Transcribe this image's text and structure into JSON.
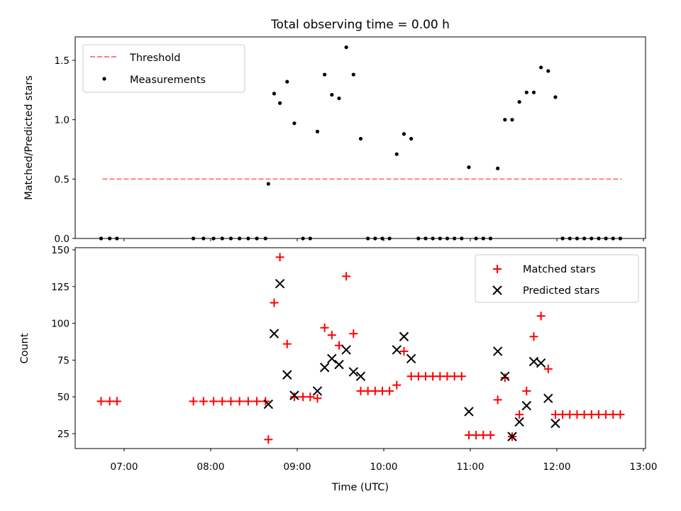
{
  "chart_data": [
    {
      "type": "scatter",
      "title": "Total observing time = 0.00 h",
      "xlabel": "",
      "ylabel": "Matched/Predicted stars",
      "ylim": [
        0,
        1.7
      ],
      "yticks": [
        0.0,
        0.5,
        1.0,
        1.5
      ],
      "ytick_labels": [
        "0.0",
        "0.5",
        "1.0",
        "1.5"
      ],
      "xlim": [
        "06:25",
        "13:00"
      ],
      "threshold": {
        "name": "Threshold",
        "value": 0.5,
        "x_start": "06:45",
        "x_end": "12:45",
        "color": "#ff8080",
        "style": "dashed"
      },
      "legend": {
        "position": "upper left",
        "entries": [
          "Threshold",
          "Measurements"
        ]
      },
      "series": [
        {
          "name": "Measurements",
          "color": "#000000",
          "marker": "dot",
          "points": [
            [
              "06:44",
              0
            ],
            [
              "06:50",
              0
            ],
            [
              "06:55",
              0
            ],
            [
              "07:48",
              0
            ],
            [
              "07:55",
              0
            ],
            [
              "08:02",
              0
            ],
            [
              "08:08",
              0
            ],
            [
              "08:14",
              0
            ],
            [
              "08:20",
              0
            ],
            [
              "08:26",
              0
            ],
            [
              "08:32",
              0
            ],
            [
              "08:38",
              0
            ],
            [
              "08:40",
              0.46
            ],
            [
              "08:44",
              1.22
            ],
            [
              "08:48",
              1.14
            ],
            [
              "08:53",
              1.32
            ],
            [
              "08:58",
              0.97
            ],
            [
              "09:04",
              0
            ],
            [
              "09:09",
              0
            ],
            [
              "09:14",
              0.9
            ],
            [
              "09:19",
              1.38
            ],
            [
              "09:24",
              1.21
            ],
            [
              "09:29",
              1.18
            ],
            [
              "09:34",
              1.61
            ],
            [
              "09:39",
              1.38
            ],
            [
              "09:44",
              0.84
            ],
            [
              "09:49",
              0
            ],
            [
              "09:54",
              0
            ],
            [
              "09:59",
              0
            ],
            [
              "10:04",
              0
            ],
            [
              "10:09",
              0.71
            ],
            [
              "10:14",
              0.88
            ],
            [
              "10:19",
              0.84
            ],
            [
              "10:24",
              0
            ],
            [
              "10:29",
              0
            ],
            [
              "10:34",
              0
            ],
            [
              "10:39",
              0
            ],
            [
              "10:44",
              0
            ],
            [
              "10:49",
              0
            ],
            [
              "10:54",
              0
            ],
            [
              "10:59",
              0.6
            ],
            [
              "11:04",
              0
            ],
            [
              "11:09",
              0
            ],
            [
              "11:14",
              0
            ],
            [
              "11:19",
              0.59
            ],
            [
              "11:24",
              1.0
            ],
            [
              "11:29",
              1.0
            ],
            [
              "11:34",
              1.15
            ],
            [
              "11:39",
              1.23
            ],
            [
              "11:44",
              1.23
            ],
            [
              "11:49",
              1.44
            ],
            [
              "11:54",
              1.41
            ],
            [
              "11:59",
              1.19
            ],
            [
              "12:04",
              0
            ],
            [
              "12:09",
              0
            ],
            [
              "12:14",
              0
            ],
            [
              "12:19",
              0
            ],
            [
              "12:24",
              0
            ],
            [
              "12:29",
              0
            ],
            [
              "12:34",
              0
            ],
            [
              "12:39",
              0
            ],
            [
              "12:44",
              0
            ]
          ]
        }
      ]
    },
    {
      "type": "scatter",
      "title": "",
      "xlabel": "Time (UTC)",
      "ylabel": "Count",
      "ylim": [
        14,
        151
      ],
      "yticks": [
        25,
        50,
        75,
        100,
        125,
        150
      ],
      "ytick_labels": [
        "25",
        "50",
        "75",
        "100",
        "125",
        "150"
      ],
      "xlim": [
        "06:25",
        "13:00"
      ],
      "xticks": [
        "07:00",
        "08:00",
        "09:00",
        "10:00",
        "11:00",
        "12:00",
        "13:00"
      ],
      "xtick_labels": [
        "07:00",
        "08:00",
        "09:00",
        "10:00",
        "11:00",
        "12:00",
        "13:00"
      ],
      "legend": {
        "position": "upper right",
        "entries": [
          "Matched stars",
          "Predicted stars"
        ]
      },
      "series": [
        {
          "name": "Matched stars",
          "color": "#ff0000",
          "marker": "plus",
          "points": [
            [
              "06:44",
              47
            ],
            [
              "06:50",
              47
            ],
            [
              "06:55",
              47
            ],
            [
              "07:48",
              47
            ],
            [
              "07:55",
              47
            ],
            [
              "08:02",
              47
            ],
            [
              "08:08",
              47
            ],
            [
              "08:14",
              47
            ],
            [
              "08:20",
              47
            ],
            [
              "08:26",
              47
            ],
            [
              "08:32",
              47
            ],
            [
              "08:38",
              47
            ],
            [
              "08:40",
              21
            ],
            [
              "08:44",
              114
            ],
            [
              "08:48",
              145
            ],
            [
              "08:53",
              86
            ],
            [
              "08:58",
              50
            ],
            [
              "09:04",
              50
            ],
            [
              "09:09",
              50
            ],
            [
              "09:14",
              49
            ],
            [
              "09:19",
              97
            ],
            [
              "09:24",
              92
            ],
            [
              "09:29",
              85
            ],
            [
              "09:34",
              132
            ],
            [
              "09:39",
              93
            ],
            [
              "09:44",
              54
            ],
            [
              "09:49",
              54
            ],
            [
              "09:54",
              54
            ],
            [
              "09:59",
              54
            ],
            [
              "10:04",
              54
            ],
            [
              "10:09",
              58
            ],
            [
              "10:14",
              81
            ],
            [
              "10:19",
              64
            ],
            [
              "10:24",
              64
            ],
            [
              "10:29",
              64
            ],
            [
              "10:34",
              64
            ],
            [
              "10:39",
              64
            ],
            [
              "10:44",
              64
            ],
            [
              "10:49",
              64
            ],
            [
              "10:54",
              64
            ],
            [
              "10:59",
              24
            ],
            [
              "11:04",
              24
            ],
            [
              "11:09",
              24
            ],
            [
              "11:14",
              24
            ],
            [
              "11:19",
              48
            ],
            [
              "11:24",
              63
            ],
            [
              "11:29",
              23
            ],
            [
              "11:34",
              38
            ],
            [
              "11:39",
              54
            ],
            [
              "11:44",
              91
            ],
            [
              "11:49",
              105
            ],
            [
              "11:54",
              69
            ],
            [
              "11:59",
              38
            ],
            [
              "12:04",
              38
            ],
            [
              "12:09",
              38
            ],
            [
              "12:14",
              38
            ],
            [
              "12:19",
              38
            ],
            [
              "12:24",
              38
            ],
            [
              "12:29",
              38
            ],
            [
              "12:34",
              38
            ],
            [
              "12:39",
              38
            ],
            [
              "12:44",
              38
            ]
          ]
        },
        {
          "name": "Predicted stars",
          "color": "#000000",
          "marker": "x",
          "points": [
            [
              "08:40",
              45
            ],
            [
              "08:44",
              93
            ],
            [
              "08:48",
              127
            ],
            [
              "08:53",
              65
            ],
            [
              "08:58",
              51
            ],
            [
              "09:14",
              54
            ],
            [
              "09:19",
              70
            ],
            [
              "09:24",
              76
            ],
            [
              "09:29",
              72
            ],
            [
              "09:34",
              82
            ],
            [
              "09:39",
              67
            ],
            [
              "09:44",
              64
            ],
            [
              "10:09",
              82
            ],
            [
              "10:14",
              91
            ],
            [
              "10:19",
              76
            ],
            [
              "10:59",
              40
            ],
            [
              "11:19",
              81
            ],
            [
              "11:24",
              64
            ],
            [
              "11:29",
              23
            ],
            [
              "11:34",
              33
            ],
            [
              "11:39",
              44
            ],
            [
              "11:44",
              74
            ],
            [
              "11:49",
              73
            ],
            [
              "11:54",
              49
            ],
            [
              "11:59",
              32
            ]
          ]
        }
      ]
    }
  ]
}
